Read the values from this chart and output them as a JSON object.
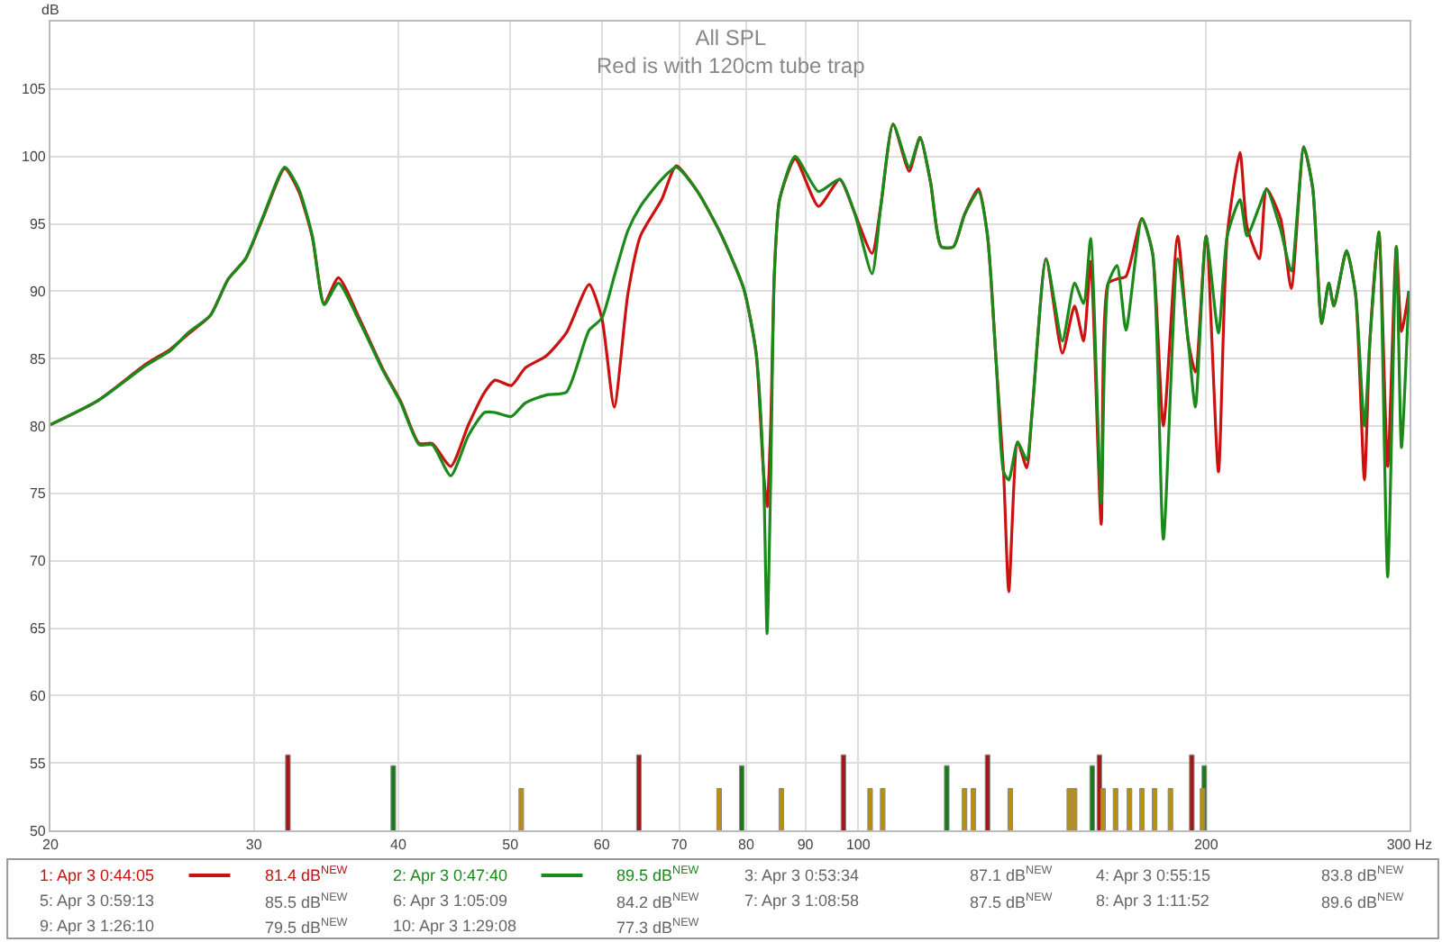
{
  "chart_data": {
    "type": "line",
    "title": "All SPL",
    "subtitle": "Red is with 120cm tube trap",
    "ylabel": "dB",
    "x": [
      20,
      22.0,
      24.2,
      25.4,
      26.3,
      27.5,
      28.5,
      29.5,
      30.6,
      31.9,
      32.8,
      33.7,
      34.5,
      35.5,
      37.0,
      38.8,
      40.2,
      41.7,
      42.8,
      44.4,
      46.0,
      47.5,
      48.5,
      50.1,
      51.5,
      53.7,
      55.9,
      58.5,
      60.0,
      61.5,
      63.2,
      64.8,
      67.6,
      69.6,
      72.6,
      76.0,
      79.6,
      81.6,
      82.8,
      83.4,
      84.0,
      84.6,
      85.5,
      88.2,
      92.4,
      96.4,
      99.2,
      102.8,
      104.6,
      107.2,
      110.7,
      113.1,
      115.5,
      118.0,
      120.9,
      123.6,
      127.1,
      129.4,
      131.7,
      133.6,
      135.0,
      137.4,
      139.9,
      141.4,
      145.4,
      150.2,
      153.9,
      156.7,
      158.9,
      162.3,
      164.6,
      167.5,
      170.5,
      176.0,
      179.8,
      183.7,
      189.0,
      193.0,
      195.8,
      200,
      205.0,
      208.6,
      214.0,
      217.0,
      222.4,
      225.6,
      232.0,
      237.0,
      243.0,
      247.4,
      251.8,
      255.4,
      258.0,
      264.6,
      269.4,
      274.2,
      277.2,
      282.2,
      287.2,
      292.2,
      295.2,
      299.6
    ],
    "series": [
      {
        "name": "1: Apr 3 0:44:05",
        "color": "#cc1111",
        "values": [
          80.1,
          81.9,
          84.6,
          85.7,
          86.8,
          88.2,
          90.9,
          92.4,
          95.6,
          99.1,
          97.4,
          94.0,
          89.1,
          91.0,
          88.0,
          84.2,
          81.8,
          78.7,
          78.7,
          77.0,
          80.1,
          82.5,
          83.4,
          83.0,
          84.3,
          85.2,
          86.9,
          90.5,
          88.0,
          81.4,
          89.8,
          94.1,
          96.8,
          99.3,
          97.4,
          94.3,
          90.2,
          85.4,
          76.6,
          74.0,
          80.0,
          91.1,
          96.8,
          99.8,
          96.3,
          98.3,
          95.9,
          92.8,
          96.3,
          102.4,
          98.9,
          101.4,
          98.1,
          93.3,
          93.3,
          95.7,
          97.6,
          94.1,
          84.5,
          76.6,
          67.7,
          78.8,
          76.9,
          81.0,
          92.4,
          85.4,
          88.9,
          86.3,
          92.2,
          72.7,
          90.6,
          90.9,
          91.1,
          95.4,
          92.8,
          80.0,
          94.1,
          86.3,
          84.0,
          94.1,
          76.6,
          94.1,
          100.3,
          94.8,
          92.4,
          97.6,
          95.4,
          90.2,
          100.7,
          97.6,
          87.6,
          90.6,
          88.9,
          93.0,
          89.8,
          76.0,
          86.3,
          94.4,
          77.0,
          93.3,
          87.0,
          90.0
        ]
      },
      {
        "name": "2: Apr 3 0:47:40",
        "color": "#1a8a1a",
        "values": [
          80.1,
          81.9,
          84.5,
          85.6,
          86.9,
          88.2,
          90.9,
          92.4,
          95.7,
          99.2,
          97.6,
          94.1,
          89.0,
          90.6,
          87.8,
          84.1,
          81.7,
          78.6,
          78.6,
          76.3,
          79.3,
          81.0,
          81.0,
          80.7,
          81.7,
          82.3,
          82.5,
          87.1,
          88.0,
          91.1,
          94.5,
          96.3,
          98.3,
          99.2,
          97.4,
          94.3,
          90.2,
          85.4,
          76.6,
          64.6,
          76.0,
          91.1,
          96.8,
          100.0,
          97.4,
          98.3,
          95.9,
          91.3,
          96.3,
          102.4,
          99.2,
          101.4,
          98.1,
          93.3,
          93.3,
          95.7,
          97.4,
          94.1,
          84.5,
          76.6,
          76.0,
          78.8,
          77.5,
          81.0,
          92.4,
          86.3,
          90.6,
          89.1,
          93.9,
          74.3,
          90.6,
          91.9,
          87.1,
          95.4,
          92.8,
          71.6,
          92.4,
          86.3,
          81.4,
          94.1,
          86.9,
          94.1,
          96.8,
          94.1,
          96.3,
          97.6,
          94.6,
          91.5,
          100.7,
          97.6,
          87.6,
          90.6,
          88.9,
          93.0,
          89.8,
          80.0,
          86.3,
          94.4,
          68.8,
          93.3,
          78.4,
          90.0
        ]
      },
      {
        "type": "bar",
        "color": "#a01818",
        "x": [
          32.1,
          64.6,
          97.1,
          129.4,
          161.7,
          194.4
        ],
        "values": [
          55.6,
          55.6,
          55.6,
          55.6,
          55.6,
          55.6
        ]
      },
      {
        "type": "bar",
        "color": "#1a7a1a",
        "x": [
          39.6,
          79.3,
          119.3,
          159.4,
          199.3
        ],
        "values": [
          54.8,
          54.8,
          54.8,
          54.8,
          54.8
        ]
      },
      {
        "type": "bar",
        "color": "#b8900c",
        "x": [
          51.1,
          75.8,
          85.8,
          102.4,
          105.0,
          123.6,
          125.8,
          135.4,
          152.3,
          153.9,
          162.9,
          167.0,
          171.7,
          176.0,
          180.5,
          186.3,
          198.6
        ],
        "values": [
          53.1,
          53.1,
          53.1,
          53.1,
          53.1,
          53.1,
          53.1,
          53.1,
          53.1,
          53.1,
          53.1,
          53.1,
          53.1,
          53.1,
          53.1,
          53.1,
          53.1
        ]
      }
    ],
    "log": "x",
    "xlim": [
      20,
      300
    ],
    "xticks": [
      20,
      30,
      40,
      50,
      60,
      70,
      80,
      90,
      100,
      200,
      {
        "value": 300,
        "label": "300 Hz"
      }
    ],
    "ylim": [
      50,
      110
    ],
    "yticks": [
      50,
      55,
      60,
      65,
      70,
      75,
      80,
      85,
      90,
      95,
      100,
      105
    ],
    "grid": true,
    "legend": "bottom",
    "annotations": [
      "81.4 dB$^{NEW}$",
      "89.5 dB$^{NEW}$",
      "3: Apr 3 0:53:34",
      "87.1 dB$^{NEW}$",
      "4: Apr 3 0:55:15",
      "83.8 dB$^{NEW}$",
      "5: Apr 3 0:59:13",
      "85.5 dB$^{NEW}$",
      "6: Apr 3 1:05:09",
      "84.2 dB$^{NEW}$",
      "7: Apr 3 1:08:58",
      "87.5 dB$^{NEW}$",
      "8: Apr 3 1:11:52",
      "89.6 dB$^{NEW}$",
      "9: Apr 3 1:26:10",
      "79.5 dB$^{NEW}$",
      "10: Apr 3 1:29:08",
      "77.3 dB$^{NEW}$"
    ]
  }
}
